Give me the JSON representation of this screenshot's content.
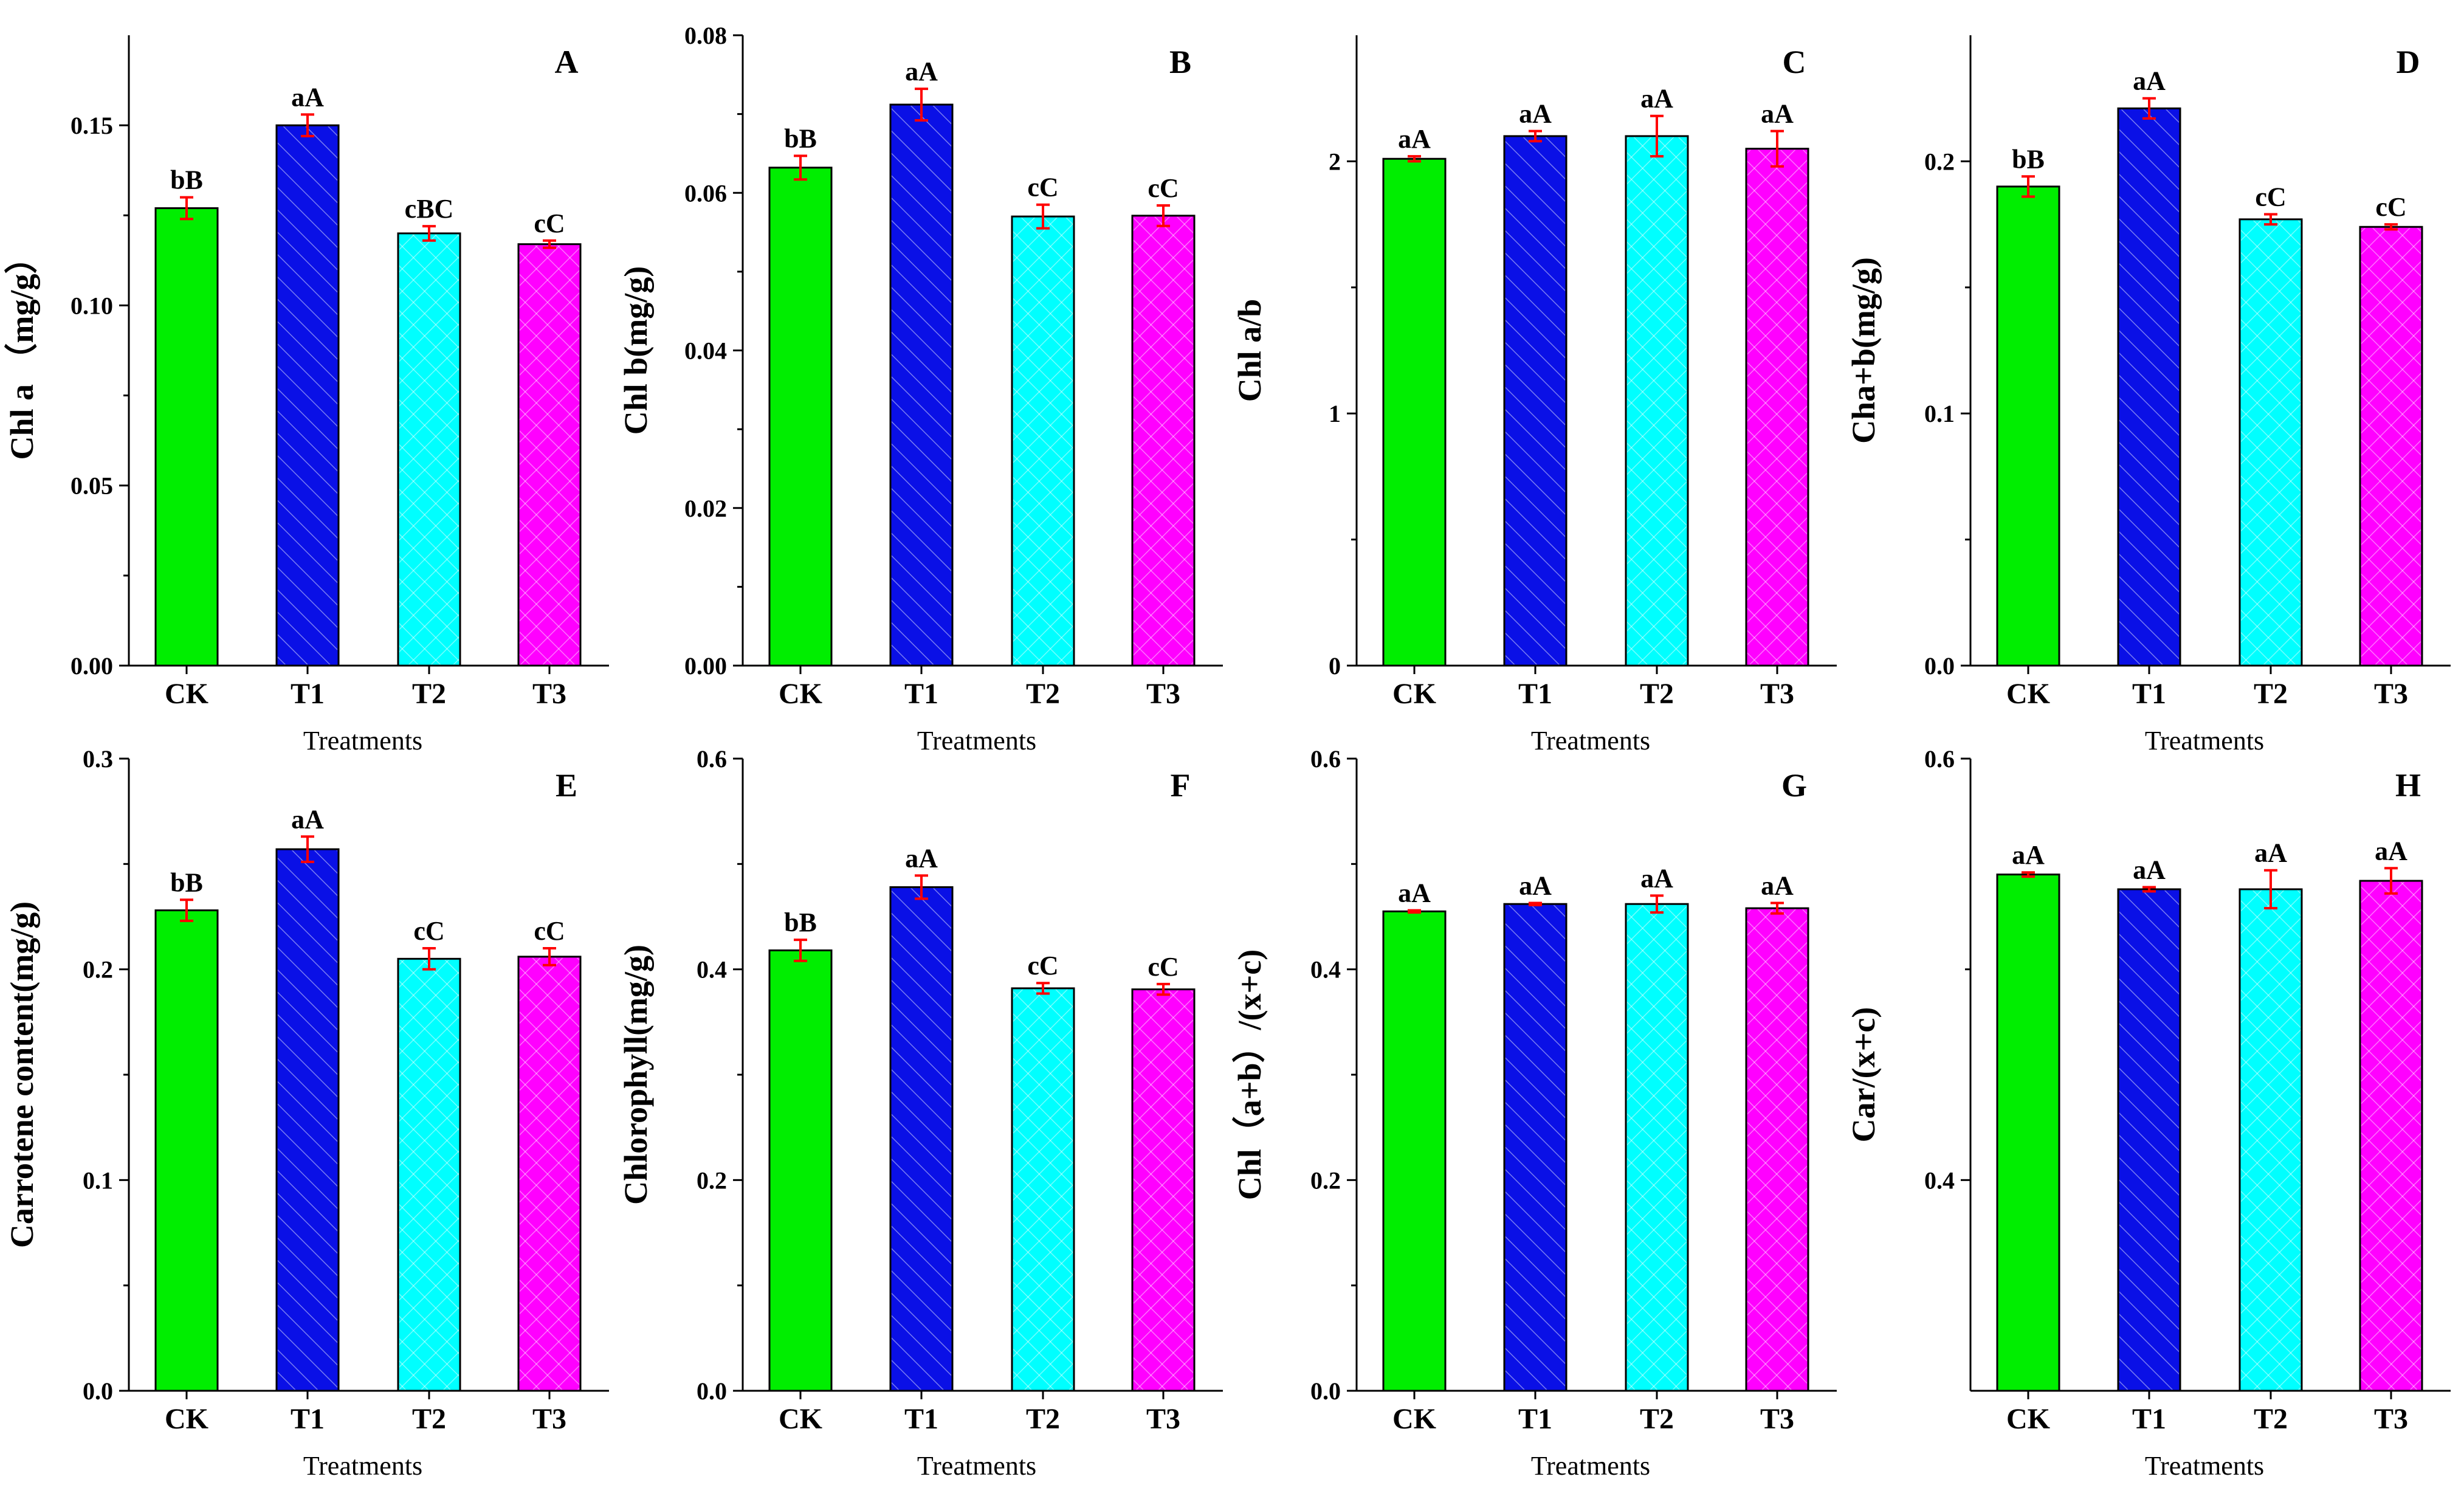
{
  "colors": {
    "CK": "#00ee00",
    "T1": "#0a10e6",
    "T2": "#00ffff",
    "T3": "#ff00ff",
    "error_bar": "#ff0000",
    "axis": "#000000"
  },
  "chart_data": [
    {
      "type": "bar",
      "panel": "A",
      "ylabel": "Chl a （mg/g）",
      "xlabel": "Treatments",
      "categories": [
        "CK",
        "T1",
        "T2",
        "T3"
      ],
      "values": [
        0.127,
        0.15,
        0.12,
        0.117
      ],
      "errors": [
        0.003,
        0.003,
        0.002,
        0.001
      ],
      "significance": [
        "bB",
        "aA",
        "cBC",
        "cC"
      ],
      "ylim": [
        0,
        0.175
      ],
      "yticks": [
        0,
        0.05,
        0.1,
        0.15
      ],
      "ytick_labels": [
        "0.00",
        "0.05",
        "0.10",
        "0.15"
      ]
    },
    {
      "type": "bar",
      "panel": "B",
      "ylabel": "Chl b(mg/g)",
      "xlabel": "Treatments",
      "categories": [
        "CK",
        "T1",
        "T2",
        "T3"
      ],
      "values": [
        0.0632,
        0.0712,
        0.057,
        0.0571
      ],
      "errors": [
        0.0015,
        0.002,
        0.0015,
        0.0013
      ],
      "significance": [
        "bB",
        "aA",
        "cC",
        "cC"
      ],
      "ylim": [
        0,
        0.08
      ],
      "yticks": [
        0,
        0.02,
        0.04,
        0.06,
        0.08
      ],
      "ytick_labels": [
        "0.00",
        "0.02",
        "0.04",
        "0.06",
        "0.08"
      ]
    },
    {
      "type": "bar",
      "panel": "C",
      "ylabel": "Chl a/b",
      "xlabel": "Treatments",
      "categories": [
        "CK",
        "T1",
        "T2",
        "T3"
      ],
      "values": [
        2.01,
        2.1,
        2.1,
        2.05
      ],
      "errors": [
        0.01,
        0.02,
        0.08,
        0.07
      ],
      "significance": [
        "aA",
        "aA",
        "aA",
        "aA"
      ],
      "ylim": [
        0,
        2.5
      ],
      "yticks": [
        0,
        1,
        2
      ],
      "ytick_labels": [
        "0",
        "1",
        "2"
      ]
    },
    {
      "type": "bar",
      "panel": "D",
      "ylabel": "Cha+b(mg/g)",
      "xlabel": "Treatments",
      "categories": [
        "CK",
        "T1",
        "T2",
        "T3"
      ],
      "values": [
        0.19,
        0.221,
        0.177,
        0.174
      ],
      "errors": [
        0.004,
        0.004,
        0.002,
        0.001
      ],
      "significance": [
        "bB",
        "aA",
        "cC",
        "cC"
      ],
      "ylim": [
        0,
        0.25
      ],
      "yticks": [
        0,
        0.1,
        0.2
      ],
      "ytick_labels": [
        "0.0",
        "0.1",
        "0.2"
      ]
    },
    {
      "type": "bar",
      "panel": "E",
      "ylabel": "Carrotene content(mg/g)",
      "xlabel": "Treatments",
      "categories": [
        "CK",
        "T1",
        "T2",
        "T3"
      ],
      "values": [
        0.228,
        0.257,
        0.205,
        0.206
      ],
      "errors": [
        0.005,
        0.006,
        0.005,
        0.004
      ],
      "significance": [
        "bB",
        "aA",
        "cC",
        "cC"
      ],
      "ylim": [
        0,
        0.3
      ],
      "yticks": [
        0,
        0.1,
        0.2,
        0.3
      ],
      "ytick_labels": [
        "0.0",
        "0.1",
        "0.2",
        "0.3"
      ]
    },
    {
      "type": "bar",
      "panel": "F",
      "ylabel": "Chlorophyll(mg/g)",
      "xlabel": "Treatments",
      "categories": [
        "CK",
        "T1",
        "T2",
        "T3"
      ],
      "values": [
        0.418,
        0.478,
        0.382,
        0.381
      ],
      "errors": [
        0.01,
        0.011,
        0.005,
        0.005
      ],
      "significance": [
        "bB",
        "aA",
        "cC",
        "cC"
      ],
      "ylim": [
        0,
        0.6
      ],
      "yticks": [
        0,
        0.2,
        0.4,
        0.6
      ],
      "ytick_labels": [
        "0.0",
        "0.2",
        "0.4",
        "0.6"
      ]
    },
    {
      "type": "bar",
      "panel": "G",
      "ylabel": "Chl（a+b）/(x+c)",
      "xlabel": "Treatments",
      "categories": [
        "CK",
        "T1",
        "T2",
        "T3"
      ],
      "values": [
        0.455,
        0.462,
        0.462,
        0.458
      ],
      "errors": [
        0.001,
        0.001,
        0.008,
        0.005
      ],
      "significance": [
        "aA",
        "aA",
        "aA",
        "aA"
      ],
      "ylim": [
        0,
        0.6
      ],
      "yticks": [
        0,
        0.2,
        0.4,
        0.6
      ],
      "ytick_labels": [
        "0.0",
        "0.2",
        "0.4",
        "0.6"
      ]
    },
    {
      "type": "bar",
      "panel": "H",
      "ylabel": "Car/(x+c)",
      "xlabel": "Treatments",
      "categories": [
        "CK",
        "T1",
        "T2",
        "T3"
      ],
      "values": [
        0.545,
        0.538,
        0.538,
        0.542
      ],
      "errors": [
        0.001,
        0.001,
        0.009,
        0.006
      ],
      "significance": [
        "aA",
        "aA",
        "aA",
        "aA"
      ],
      "ylim": [
        0.3,
        0.6
      ],
      "yticks": [
        0.4,
        0.6
      ],
      "ytick_labels": [
        "0.4",
        "0.6"
      ]
    }
  ]
}
